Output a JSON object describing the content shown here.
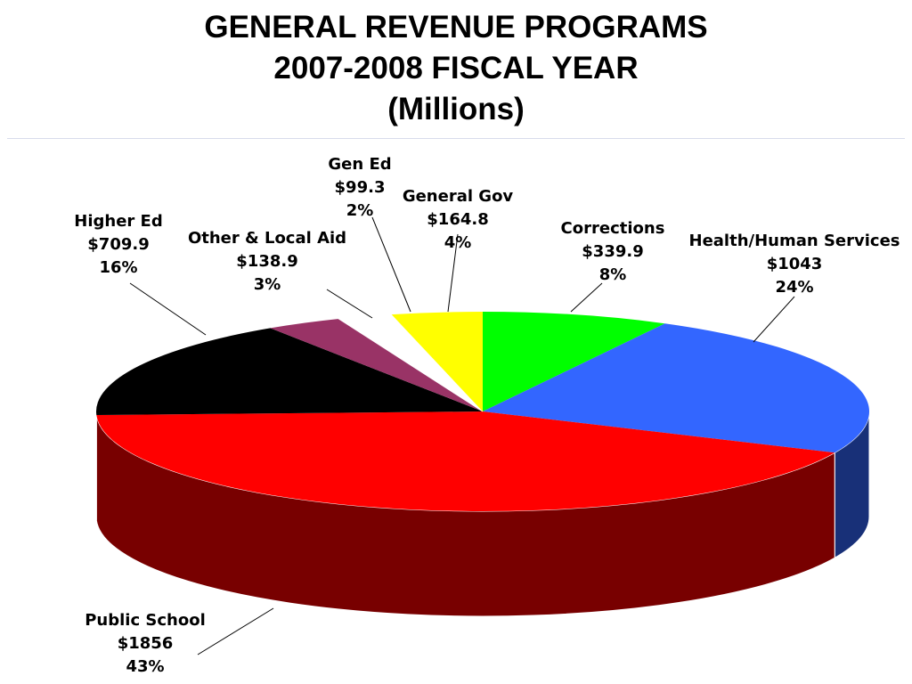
{
  "chart_data": {
    "type": "pie",
    "title": [
      "GENERAL REVENUE PROGRAMS",
      "2007-2008 FISCAL YEAR",
      "(Millions)"
    ],
    "unit": "Millions",
    "slices": [
      {
        "name": "Corrections",
        "value_label": "$339.9",
        "value": 339.9,
        "percent": 8,
        "percent_label": "8%",
        "color": "#00ff00"
      },
      {
        "name": "Health/Human Services",
        "value_label": "$1043",
        "value": 1043,
        "percent": 24,
        "percent_label": "24%",
        "color": "#3366ff"
      },
      {
        "name": "Public School",
        "value_label": "$1856",
        "value": 1856,
        "percent": 43,
        "percent_label": "43%",
        "color": "#ff0000"
      },
      {
        "name": "Higher Ed",
        "value_label": "$709.9",
        "value": 709.9,
        "percent": 16,
        "percent_label": "16%",
        "color": "#000000"
      },
      {
        "name": "Other & Local Aid",
        "value_label": "$138.9",
        "value": 138.9,
        "percent": 3,
        "percent_label": "3%",
        "color": "#993366"
      },
      {
        "name": "Gen Ed",
        "value_label": "$99.3",
        "value": 99.3,
        "percent": 2,
        "percent_label": "2%",
        "color": "#ffffff"
      },
      {
        "name": "General Gov",
        "value_label": "$164.8",
        "value": 164.8,
        "percent": 4,
        "percent_label": "4%",
        "color": "#ffff00"
      }
    ],
    "legend": "none"
  }
}
